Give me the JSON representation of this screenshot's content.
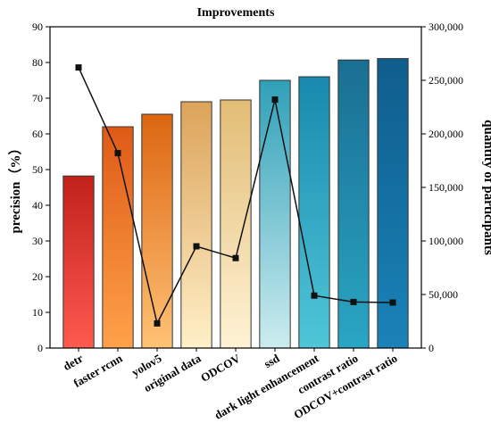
{
  "chart_data": {
    "type": "bar",
    "title": "Improvements",
    "categories": [
      "detr",
      "faster rcnn",
      "yolov5",
      "original data",
      "ODCOV",
      "ssd",
      "dark light enhancement",
      "contrast ratio",
      "ODCOV+contrast ratio"
    ],
    "ylabel": "precision（%）",
    "y2label": "quantity of participants",
    "ylim": [
      0,
      90
    ],
    "y2lim": [
      0,
      300000
    ],
    "yticks": [
      "0",
      "10",
      "20",
      "30",
      "40",
      "50",
      "60",
      "70",
      "80",
      "90"
    ],
    "y2ticks": [
      "0",
      "50,000",
      "100,000",
      "150,000",
      "200,000",
      "250,000",
      "300,000"
    ],
    "series": [
      {
        "type": "bar",
        "axis": "left",
        "values": [
          48.2,
          62.0,
          65.5,
          69.0,
          69.5,
          75.0,
          76.0,
          80.7,
          81.1
        ],
        "colors_top": [
          "#c0211b",
          "#de5a16",
          "#dc6612",
          "#dca35a",
          "#e2bc74",
          "#2fa0b8",
          "#1889ad",
          "#1a6e93",
          "#0f5d8d"
        ],
        "colors_bottom": [
          "#ff5a50",
          "#ffa24a",
          "#ffc275",
          "#fff0c8",
          "#fff3d6",
          "#ccecef",
          "#4fc6d8",
          "#2aa6c4",
          "#1a83b8"
        ]
      },
      {
        "type": "line",
        "axis": "right",
        "values": [
          262000,
          182000,
          23000,
          95000,
          84000,
          232000,
          49000,
          43000,
          42500
        ],
        "color": "#111111"
      }
    ]
  }
}
